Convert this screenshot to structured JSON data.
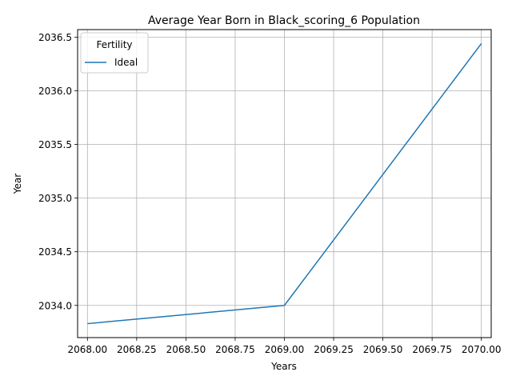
{
  "chart_data": {
    "type": "line",
    "title": "Average Year Born in Black_scoring_6 Population",
    "xlabel": "Years",
    "ylabel": "Year",
    "xlim": [
      2067.95,
      2070.05
    ],
    "ylim": [
      2033.7,
      2036.57
    ],
    "x_ticks": [
      "2068.00",
      "2068.25",
      "2068.50",
      "2068.75",
      "2069.00",
      "2069.25",
      "2069.50",
      "2069.75",
      "2070.00"
    ],
    "y_ticks": [
      "2034.0",
      "2034.5",
      "2035.0",
      "2035.5",
      "2036.0",
      "2036.5"
    ],
    "grid": true,
    "legend": {
      "title": "Fertility",
      "position": "top-left"
    },
    "series": [
      {
        "name": "Ideal",
        "color": "#1f77b4",
        "x": [
          2068.0,
          2069.0,
          2070.0
        ],
        "y": [
          2033.83,
          2034.0,
          2036.44
        ]
      }
    ]
  }
}
